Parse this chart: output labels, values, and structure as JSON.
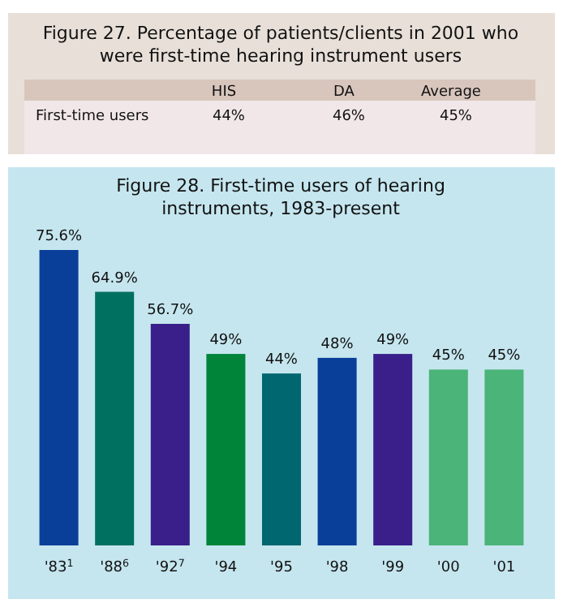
{
  "chart_data": [
    {
      "type": "other",
      "title": "Figure 27. Percentage of patients/clients in 2001 who were first-time hearing instrument users",
      "ylabel": "First-time users",
      "categories": [
        "HIS",
        "DA",
        "Average"
      ],
      "values": [
        44,
        46,
        45
      ],
      "value_labels": [
        "44%",
        "46%",
        "45%"
      ]
    },
    {
      "type": "bar",
      "title": "Figure 28. First-time users of hearing instruments, 1983-present",
      "categories": [
        "'83$^{1}$",
        "'88$^{6}$",
        "'92$^{7}$",
        "'94",
        "'95",
        "'98",
        "'99",
        "'00",
        "'01"
      ],
      "values": [
        75.6,
        64.9,
        56.7,
        49,
        44,
        48,
        49,
        45,
        45
      ],
      "value_labels": [
        "75.6%",
        "64.9%",
        "56.7%",
        "49%",
        "44%",
        "48%",
        "49%",
        "45%",
        "45%"
      ],
      "colors": [
        "#0a3f99",
        "#007060",
        "#3a1f8a",
        "#00843a",
        "#006670",
        "#0a3f99",
        "#3a1f8a",
        "#4bb478",
        "#4bb478"
      ],
      "tick_labels": "x"
    }
  ]
}
